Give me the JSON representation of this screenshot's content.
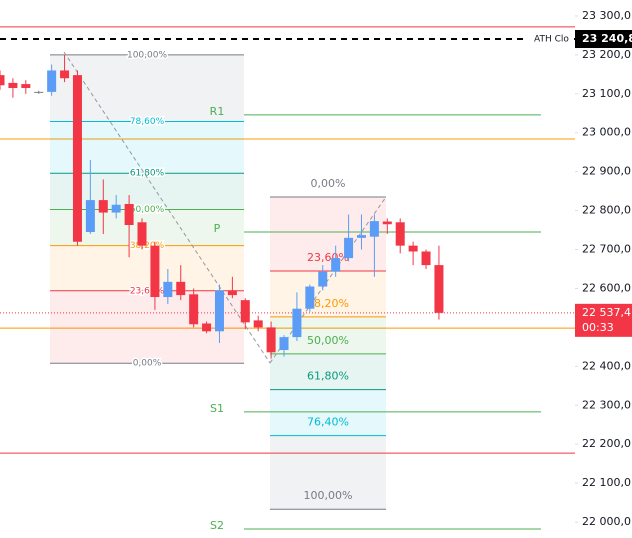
{
  "chart_data": {
    "type": "candlestick",
    "up_color": "#5b9cf6",
    "down_color": "#f23645",
    "flat_color": "#787b86",
    "ylim": [
      21959,
      23341
    ],
    "yticks": [
      {
        "value": 23300,
        "label": "23 300,0"
      },
      {
        "value": 23200,
        "label": "23 200,0"
      },
      {
        "value": 23100,
        "label": "23 100,0"
      },
      {
        "value": 23000,
        "label": "23 000,0"
      },
      {
        "value": 22900,
        "label": "22 900,0"
      },
      {
        "value": 22800,
        "label": "22 800,0"
      },
      {
        "value": 22700,
        "label": "22 700,0"
      },
      {
        "value": 22600,
        "label": "22 600,0"
      },
      {
        "value": 22500,
        "label": "22 500,0"
      },
      {
        "value": 22400,
        "label": "22 400,0"
      },
      {
        "value": 22300,
        "label": "22 300,0"
      },
      {
        "value": 22200,
        "label": "22 200,0"
      },
      {
        "value": 22100,
        "label": "22 100,0"
      },
      {
        "value": 22000,
        "label": "22 000,0"
      }
    ],
    "candles": [
      {
        "o": 23148,
        "h": 23160,
        "l": 23110,
        "c": 23122
      },
      {
        "o": 23128,
        "h": 23140,
        "l": 23090,
        "c": 23115
      },
      {
        "o": 23125,
        "h": 23135,
        "l": 23100,
        "c": 23115
      },
      {
        "o": 23105,
        "h": 23108,
        "l": 23100,
        "c": 23105
      },
      {
        "o": 23105,
        "h": 23175,
        "l": 23095,
        "c": 23160
      },
      {
        "o": 23160,
        "h": 23200,
        "l": 23130,
        "c": 23140
      },
      {
        "o": 23148,
        "h": 23160,
        "l": 22710,
        "c": 22720
      },
      {
        "o": 22745,
        "h": 22930,
        "l": 22740,
        "c": 22827
      },
      {
        "o": 22827,
        "h": 22880,
        "l": 22740,
        "c": 22795
      },
      {
        "o": 22795,
        "h": 22840,
        "l": 22780,
        "c": 22815
      },
      {
        "o": 22817,
        "h": 22840,
        "l": 22680,
        "c": 22763
      },
      {
        "o": 22770,
        "h": 22780,
        "l": 22700,
        "c": 22710
      },
      {
        "o": 22710,
        "h": 22720,
        "l": 22545,
        "c": 22578
      },
      {
        "o": 22578,
        "h": 22650,
        "l": 22560,
        "c": 22617
      },
      {
        "o": 22617,
        "h": 22660,
        "l": 22570,
        "c": 22583
      },
      {
        "o": 22585,
        "h": 22600,
        "l": 22500,
        "c": 22508
      },
      {
        "o": 22510,
        "h": 22515,
        "l": 22485,
        "c": 22490
      },
      {
        "o": 22490,
        "h": 22610,
        "l": 22460,
        "c": 22595
      },
      {
        "o": 22595,
        "h": 22630,
        "l": 22575,
        "c": 22583
      },
      {
        "o": 22570,
        "h": 22575,
        "l": 22495,
        "c": 22513
      },
      {
        "o": 22518,
        "h": 22530,
        "l": 22490,
        "c": 22500
      },
      {
        "o": 22500,
        "h": 22515,
        "l": 22420,
        "c": 22436
      },
      {
        "o": 22442,
        "h": 22480,
        "l": 22425,
        "c": 22475
      },
      {
        "o": 22475,
        "h": 22590,
        "l": 22465,
        "c": 22548
      },
      {
        "o": 22548,
        "h": 22610,
        "l": 22540,
        "c": 22605
      },
      {
        "o": 22605,
        "h": 22660,
        "l": 22595,
        "c": 22643
      },
      {
        "o": 22643,
        "h": 22710,
        "l": 22630,
        "c": 22678
      },
      {
        "o": 22678,
        "h": 22790,
        "l": 22670,
        "c": 22730
      },
      {
        "o": 22730,
        "h": 22790,
        "l": 22700,
        "c": 22737
      },
      {
        "o": 22733,
        "h": 22790,
        "l": 22630,
        "c": 22773
      },
      {
        "o": 22772,
        "h": 22780,
        "l": 22740,
        "c": 22765
      },
      {
        "o": 22770,
        "h": 22780,
        "l": 22690,
        "c": 22710
      },
      {
        "o": 22710,
        "h": 22720,
        "l": 22660,
        "c": 22695
      },
      {
        "o": 22695,
        "h": 22700,
        "l": 22650,
        "c": 22660
      },
      {
        "o": 22660,
        "h": 22710,
        "l": 22520,
        "c": 22537.4
      }
    ],
    "hlines": [
      {
        "value": 23272,
        "color": "#f23645"
      },
      {
        "value": 22984,
        "color": "#ff9800"
      },
      {
        "value": 22498,
        "color": "#ff9800"
      },
      {
        "value": 22177,
        "color": "#f23645"
      }
    ],
    "pivots": [
      {
        "label": "R1",
        "value": 23046
      },
      {
        "label": "P",
        "value": 22745
      },
      {
        "label": "S1",
        "value": 22283
      },
      {
        "label": "S2",
        "value": 21982
      }
    ],
    "pivot_color": "#4caf50",
    "fibs": [
      {
        "levels": [
          {
            "label": "0,00%",
            "value": 22408,
            "color": "#787b86"
          },
          {
            "label": "23,60%",
            "value": 22594,
            "color": "#f23645"
          },
          {
            "label": "38,20%",
            "value": 22710,
            "color": "#ff9800"
          },
          {
            "label": "50,00%",
            "value": 22803,
            "color": "#4caf50"
          },
          {
            "label": "61,80%",
            "value": 22896,
            "color": "#089981"
          },
          {
            "label": "78,60%",
            "value": 23029,
            "color": "#00bcd4"
          },
          {
            "label": "100,00%",
            "value": 23200,
            "color": "#787b86"
          }
        ]
      },
      {
        "levels": [
          {
            "label": "0,00%",
            "value": 22835,
            "color": "#787b86"
          },
          {
            "label": "23,60%",
            "value": 22645,
            "color": "#f23645"
          },
          {
            "label": "38,20%",
            "value": 22527,
            "color": "#ff9800"
          },
          {
            "label": "50,00%",
            "value": 22432,
            "color": "#4caf50"
          },
          {
            "label": "61,80%",
            "value": 22340,
            "color": "#089981"
          },
          {
            "label": "76,40%",
            "value": 22222,
            "color": "#00bcd4"
          },
          {
            "label": "100,00%",
            "value": 22033,
            "color": "#787b86"
          }
        ]
      }
    ],
    "ath": {
      "label": "ATH Clo",
      "value": 23240.8,
      "value_label": "23 240,8"
    },
    "last": {
      "value": 22537.4,
      "value_label": "22 537,4",
      "countdown": "00:33"
    }
  }
}
